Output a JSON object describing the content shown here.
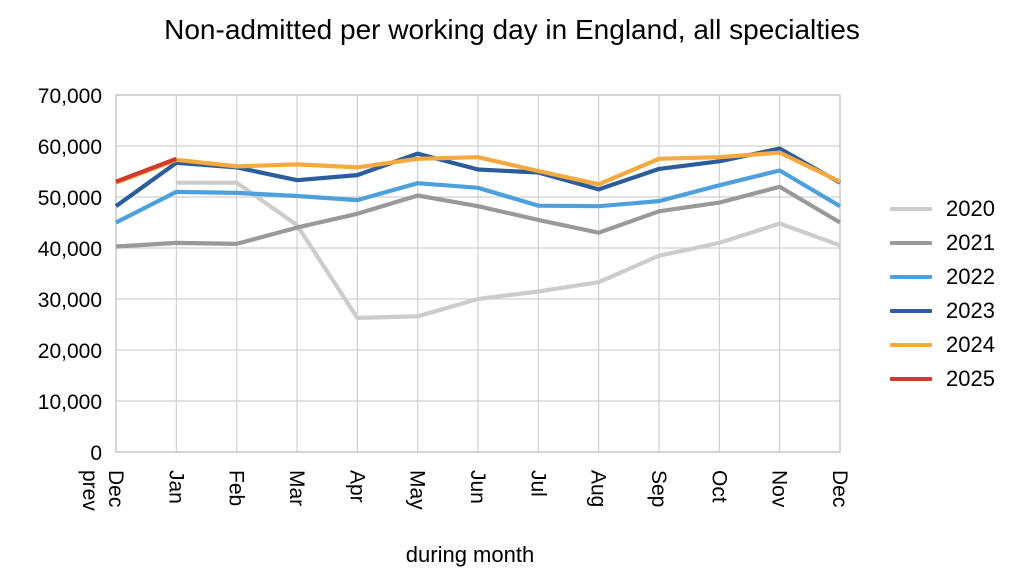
{
  "chart_data": {
    "type": "line",
    "title": "Non-admitted per working day in England, all specialties",
    "xlabel": "during month",
    "ylabel": "",
    "categories": [
      "Dec prev",
      "Jan",
      "Feb",
      "Mar",
      "Apr",
      "May",
      "Jun",
      "Jul",
      "Aug",
      "Sep",
      "Oct",
      "Nov",
      "Dec"
    ],
    "ylim": [
      0,
      70000
    ],
    "yticks": [
      0,
      10000,
      20000,
      30000,
      40000,
      50000,
      60000,
      70000
    ],
    "ytick_labels": [
      "0",
      "10,000",
      "20,000",
      "30,000",
      "40,000",
      "50,000",
      "60,000",
      "70,000"
    ],
    "grid": true,
    "legend_position": "right",
    "series": [
      {
        "name": "2020",
        "color": "#cccccc",
        "values": [
          null,
          52800,
          52800,
          44500,
          26300,
          26600,
          30000,
          31500,
          33300,
          38500,
          41000,
          44800,
          40500
        ]
      },
      {
        "name": "2021",
        "color": "#999999",
        "values": [
          40300,
          41000,
          40800,
          44000,
          46700,
          50300,
          48200,
          45500,
          43000,
          47200,
          48900,
          52000,
          45000
        ]
      },
      {
        "name": "2022",
        "color": "#4da0dc",
        "values": [
          45000,
          51000,
          50800,
          50200,
          49400,
          52700,
          51800,
          48300,
          48200,
          49200,
          52300,
          55200,
          48200
        ]
      },
      {
        "name": "2023",
        "color": "#2a5d9a",
        "values": [
          48200,
          56700,
          55800,
          53300,
          54300,
          58500,
          55400,
          54800,
          51500,
          55500,
          57000,
          59500,
          52800
        ]
      },
      {
        "name": "2024",
        "color": "#f5a940",
        "values": [
          52800,
          57300,
          56000,
          56400,
          55800,
          57500,
          57800,
          55100,
          52500,
          57500,
          57800,
          58700,
          53000
        ]
      },
      {
        "name": "2025",
        "color": "#d0392b",
        "values": [
          53000,
          57500,
          null,
          null,
          null,
          null,
          null,
          null,
          null,
          null,
          null,
          null,
          null
        ]
      }
    ]
  },
  "colors": {
    "grid": "#d0d0d0",
    "axis": "#c0c0c0",
    "text": "#000000"
  }
}
